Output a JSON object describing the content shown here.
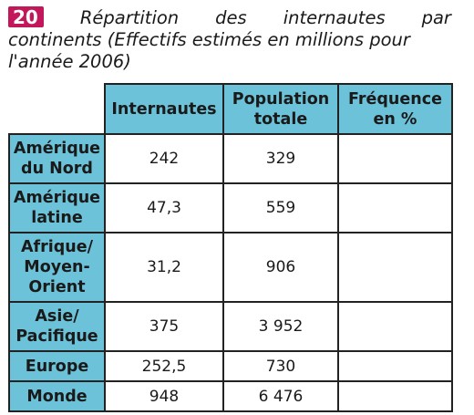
{
  "exercise": {
    "number": "20",
    "title_line1": [
      "Répartition",
      "des",
      "internautes",
      "par"
    ],
    "title_line2": "continents (Effectifs estimés en millions pour",
    "title_line3": "l'année 2006)"
  },
  "table": {
    "headers": [
      "Internautes",
      "Population totale",
      "Fréquence en %"
    ],
    "header_lines": [
      [
        "Internautes"
      ],
      [
        "Population",
        "totale"
      ],
      [
        "Fréquence",
        "en %"
      ]
    ],
    "rows": [
      {
        "label": "Amérique du Nord",
        "label_lines": [
          "Amérique",
          "du Nord"
        ],
        "internautes": "242",
        "population": "329",
        "frequence": ""
      },
      {
        "label": "Amérique latine",
        "label_lines": [
          "Amérique",
          "latine"
        ],
        "internautes": "47,3",
        "population": "559",
        "frequence": ""
      },
      {
        "label": "Afrique/Moyen-Orient",
        "label_lines": [
          "Afrique/",
          "Moyen-",
          "Orient"
        ],
        "internautes": "31,2",
        "population": "906",
        "frequence": ""
      },
      {
        "label": "Asie/Pacifique",
        "label_lines": [
          "Asie/",
          "Pacifique"
        ],
        "internautes": "375",
        "population": "3 952",
        "frequence": ""
      },
      {
        "label": "Europe",
        "label_lines": [
          "Europe"
        ],
        "internautes": "252,5",
        "population": "730",
        "frequence": ""
      },
      {
        "label": "Monde",
        "label_lines": [
          "Monde"
        ],
        "internautes": "948",
        "population": "6 476",
        "frequence": ""
      }
    ]
  },
  "colors": {
    "badge": "#c2185b",
    "header_fill": "#6cc3d9",
    "border": "#222222"
  }
}
